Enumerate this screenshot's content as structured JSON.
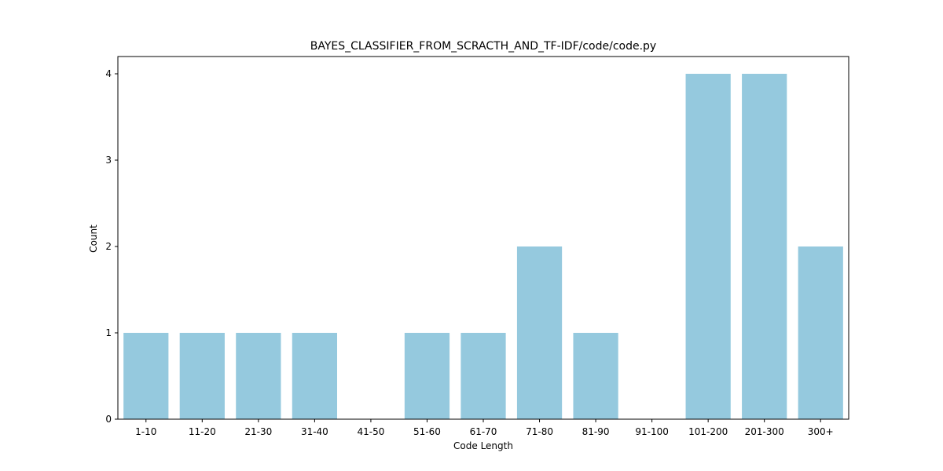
{
  "chart_data": {
    "type": "bar",
    "title": "BAYES_CLASSIFIER_FROM_SCRACTH_AND_TF-IDF/code/code.py",
    "xlabel": "Code Length",
    "ylabel": "Count",
    "categories": [
      "1-10",
      "11-20",
      "21-30",
      "31-40",
      "41-50",
      "51-60",
      "61-70",
      "71-80",
      "81-90",
      "91-100",
      "101-200",
      "201-300",
      "300+"
    ],
    "values": [
      1,
      1,
      1,
      1,
      0,
      1,
      1,
      2,
      1,
      0,
      4,
      4,
      2
    ],
    "ylim": [
      0,
      4.2
    ],
    "yticks": [
      0,
      1,
      2,
      3,
      4
    ],
    "bar_color": "#95c9de",
    "grid": false,
    "legend": "none"
  }
}
